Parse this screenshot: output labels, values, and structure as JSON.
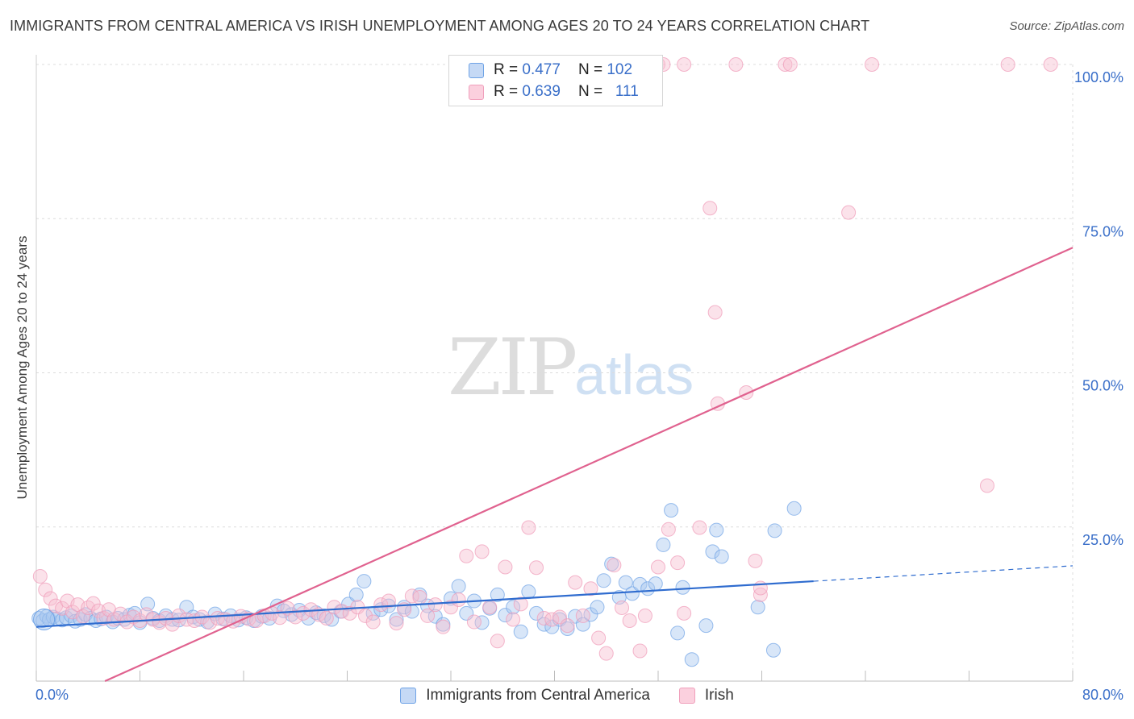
{
  "header": {
    "title": "IMMIGRANTS FROM CENTRAL AMERICA VS IRISH UNEMPLOYMENT AMONG AGES 20 TO 24 YEARS CORRELATION CHART",
    "source": "Source: ZipAtlas.com"
  },
  "watermark": {
    "zip": "ZIP",
    "atlas": "atlas"
  },
  "legend": {
    "rows": [
      {
        "r_label": "R =",
        "r_value": "0.477",
        "n_label": "N =",
        "n_value": "102"
      },
      {
        "r_label": "R =",
        "r_value": "0.639",
        "n_label": "N =",
        "n_value": "111"
      }
    ]
  },
  "chart_data": {
    "type": "scatter",
    "ylabel": "Unemployment Among Ages 20 to 24 years",
    "xlim": [
      0,
      80
    ],
    "ylim": [
      0,
      100
    ],
    "x_tick_labels": [
      "0.0%",
      "80.0%"
    ],
    "y_tick_labels": [
      "25.0%",
      "50.0%",
      "75.0%",
      "100.0%"
    ],
    "y_ticks": [
      25,
      50,
      75,
      100
    ],
    "grid": true,
    "legend_placement": "top-center",
    "colors": {
      "blue": "#6fa3e6",
      "blue_line": "#2f6ccf",
      "pink": "#f0a0bc",
      "pink_line": "#e0628f",
      "axis_text": "#3a6fc9"
    },
    "series": [
      {
        "name": "Immigrants from Central America",
        "color": "#6fa3e6",
        "trend": {
          "x": [
            0,
            60
          ],
          "y": [
            8.8,
            16.2
          ],
          "dashed_to": [
            80,
            18.7
          ]
        },
        "points": [
          [
            0.2,
            10.2
          ],
          [
            0.5,
            9.8
          ],
          [
            0.8,
            10.5
          ],
          [
            1.0,
            10.0
          ],
          [
            1.3,
            10.4
          ],
          [
            1.6,
            10.1
          ],
          [
            2.0,
            9.9
          ],
          [
            2.3,
            10.3
          ],
          [
            2.7,
            10.6
          ],
          [
            3.0,
            9.7
          ],
          [
            3.4,
            10.0
          ],
          [
            3.8,
            10.8
          ],
          [
            4.2,
            10.2
          ],
          [
            4.6,
            9.8
          ],
          [
            5.0,
            10.1
          ],
          [
            5.4,
            10.4
          ],
          [
            5.9,
            9.6
          ],
          [
            6.3,
            10.2
          ],
          [
            6.8,
            10.0
          ],
          [
            7.2,
            10.7
          ],
          [
            7.6,
            11.0
          ],
          [
            8.0,
            9.5
          ],
          [
            8.6,
            12.5
          ],
          [
            9.0,
            10.2
          ],
          [
            9.5,
            9.8
          ],
          [
            10.0,
            10.6
          ],
          [
            10.5,
            10.0
          ],
          [
            11.0,
            9.9
          ],
          [
            11.6,
            12.0
          ],
          [
            12.1,
            10.4
          ],
          [
            12.6,
            10.0
          ],
          [
            13.2,
            9.6
          ],
          [
            13.8,
            10.9
          ],
          [
            14.4,
            10.1
          ],
          [
            15.0,
            10.6
          ],
          [
            15.6,
            9.9
          ],
          [
            16.2,
            10.3
          ],
          [
            16.8,
            9.8
          ],
          [
            17.4,
            10.5
          ],
          [
            18.0,
            10.2
          ],
          [
            18.6,
            12.2
          ],
          [
            19.1,
            11.4
          ],
          [
            19.7,
            10.8
          ],
          [
            20.3,
            11.5
          ],
          [
            21.0,
            10.2
          ],
          [
            21.6,
            11.1
          ],
          [
            22.2,
            10.6
          ],
          [
            22.8,
            10.0
          ],
          [
            23.5,
            11.3
          ],
          [
            24.1,
            12.5
          ],
          [
            24.7,
            14.0
          ],
          [
            25.3,
            16.2
          ],
          [
            26.0,
            11.0
          ],
          [
            26.6,
            11.6
          ],
          [
            27.2,
            12.2
          ],
          [
            27.8,
            10.0
          ],
          [
            28.4,
            12.0
          ],
          [
            29.0,
            11.3
          ],
          [
            29.6,
            14.0
          ],
          [
            30.2,
            12.2
          ],
          [
            30.8,
            10.5
          ],
          [
            31.4,
            9.2
          ],
          [
            32.0,
            13.4
          ],
          [
            32.6,
            15.4
          ],
          [
            33.2,
            11.0
          ],
          [
            33.8,
            13.0
          ],
          [
            34.4,
            9.5
          ],
          [
            35.0,
            11.8
          ],
          [
            35.6,
            14.0
          ],
          [
            36.2,
            10.7
          ],
          [
            36.8,
            12.0
          ],
          [
            37.4,
            8.0
          ],
          [
            38.0,
            14.5
          ],
          [
            38.6,
            11.0
          ],
          [
            39.2,
            9.2
          ],
          [
            39.8,
            8.8
          ],
          [
            40.4,
            10.0
          ],
          [
            41.0,
            8.5
          ],
          [
            41.6,
            10.5
          ],
          [
            42.2,
            9.2
          ],
          [
            42.8,
            10.8
          ],
          [
            43.3,
            12.0
          ],
          [
            43.8,
            16.3
          ],
          [
            44.4,
            19.0
          ],
          [
            45.0,
            13.6
          ],
          [
            45.5,
            16.0
          ],
          [
            46.0,
            14.2
          ],
          [
            46.6,
            15.7
          ],
          [
            47.2,
            15.0
          ],
          [
            47.8,
            15.8
          ],
          [
            48.4,
            22.1
          ],
          [
            49.0,
            27.7
          ],
          [
            49.5,
            7.8
          ],
          [
            49.9,
            15.2
          ],
          [
            50.6,
            3.5
          ],
          [
            52.2,
            21.0
          ],
          [
            52.9,
            20.2
          ],
          [
            51.7,
            9.0
          ],
          [
            52.5,
            24.5
          ],
          [
            57.0,
            24.4
          ],
          [
            55.7,
            12.0
          ],
          [
            56.9,
            5.0
          ],
          [
            58.5,
            28.0
          ]
        ]
      },
      {
        "name": "Irish",
        "color": "#f0a0bc",
        "trend": {
          "x": [
            5.3,
            80
          ],
          "y": [
            0,
            70.3
          ]
        },
        "points": [
          [
            0.3,
            17.0
          ],
          [
            0.7,
            14.8
          ],
          [
            1.1,
            13.4
          ],
          [
            1.5,
            12.2
          ],
          [
            2.0,
            11.8
          ],
          [
            2.4,
            13.0
          ],
          [
            2.8,
            11.2
          ],
          [
            3.2,
            12.4
          ],
          [
            3.6,
            10.5
          ],
          [
            4.0,
            11.9
          ],
          [
            4.4,
            12.6
          ],
          [
            4.8,
            11.4
          ],
          [
            5.2,
            10.2
          ],
          [
            5.6,
            11.6
          ],
          [
            6.0,
            10.0
          ],
          [
            6.5,
            10.9
          ],
          [
            7.0,
            9.6
          ],
          [
            7.5,
            10.4
          ],
          [
            8.0,
            9.8
          ],
          [
            8.5,
            10.8
          ],
          [
            9.0,
            10.0
          ],
          [
            9.5,
            9.5
          ],
          [
            10.0,
            10.2
          ],
          [
            10.5,
            9.2
          ],
          [
            11.0,
            10.6
          ],
          [
            11.6,
            10.0
          ],
          [
            12.2,
            9.8
          ],
          [
            12.8,
            10.4
          ],
          [
            13.4,
            9.5
          ],
          [
            14.0,
            10.2
          ],
          [
            14.6,
            10.0
          ],
          [
            15.2,
            9.7
          ],
          [
            15.8,
            10.5
          ],
          [
            16.4,
            10.1
          ],
          [
            17.0,
            9.8
          ],
          [
            17.6,
            10.6
          ],
          [
            18.2,
            11.0
          ],
          [
            18.8,
            10.3
          ],
          [
            19.4,
            11.8
          ],
          [
            20.0,
            10.4
          ],
          [
            20.6,
            11.0
          ],
          [
            21.2,
            11.6
          ],
          [
            21.8,
            10.8
          ],
          [
            22.4,
            10.2
          ],
          [
            23.0,
            12.0
          ],
          [
            23.6,
            11.3
          ],
          [
            24.2,
            11.0
          ],
          [
            24.8,
            12.0
          ],
          [
            25.4,
            10.6
          ],
          [
            26.0,
            9.6
          ],
          [
            26.6,
            12.4
          ],
          [
            27.2,
            13.0
          ],
          [
            27.8,
            9.4
          ],
          [
            28.4,
            11.6
          ],
          [
            29.0,
            13.8
          ],
          [
            29.6,
            13.6
          ],
          [
            30.2,
            10.6
          ],
          [
            30.8,
            12.4
          ],
          [
            31.4,
            8.8
          ],
          [
            32.0,
            12.0
          ],
          [
            32.6,
            13.2
          ],
          [
            33.2,
            20.3
          ],
          [
            33.8,
            9.6
          ],
          [
            34.4,
            21.0
          ],
          [
            35.0,
            12.0
          ],
          [
            35.6,
            6.5
          ],
          [
            36.2,
            18.5
          ],
          [
            36.8,
            10.0
          ],
          [
            37.4,
            12.5
          ],
          [
            38.0,
            24.9
          ],
          [
            38.6,
            18.4
          ],
          [
            39.2,
            10.2
          ],
          [
            39.8,
            10.0
          ],
          [
            40.4,
            10.4
          ],
          [
            41.0,
            9.0
          ],
          [
            41.6,
            16.0
          ],
          [
            42.2,
            10.6
          ],
          [
            42.8,
            15.0
          ],
          [
            43.4,
            7.0
          ],
          [
            44.0,
            4.5
          ],
          [
            44.6,
            18.8
          ],
          [
            45.2,
            11.9
          ],
          [
            45.8,
            9.8
          ],
          [
            46.6,
            4.9
          ],
          [
            47.0,
            10.6
          ],
          [
            48.0,
            18.5
          ],
          [
            48.8,
            24.6
          ],
          [
            49.5,
            19.2
          ],
          [
            50.0,
            11.0
          ],
          [
            51.2,
            24.9
          ],
          [
            52.0,
            76.7
          ],
          [
            52.6,
            45.0
          ],
          [
            52.4,
            59.8
          ],
          [
            54.8,
            46.8
          ],
          [
            55.5,
            19.5
          ],
          [
            55.9,
            14.0
          ],
          [
            55.9,
            15.1
          ],
          [
            62.7,
            76.0
          ],
          [
            73.4,
            31.7
          ],
          [
            48.0,
            100
          ],
          [
            48.4,
            100
          ],
          [
            50.0,
            100
          ],
          [
            54.0,
            100
          ],
          [
            57.8,
            100
          ],
          [
            58.2,
            100
          ],
          [
            64.5,
            100
          ],
          [
            75.0,
            100
          ],
          [
            78.3,
            100
          ]
        ]
      }
    ]
  }
}
